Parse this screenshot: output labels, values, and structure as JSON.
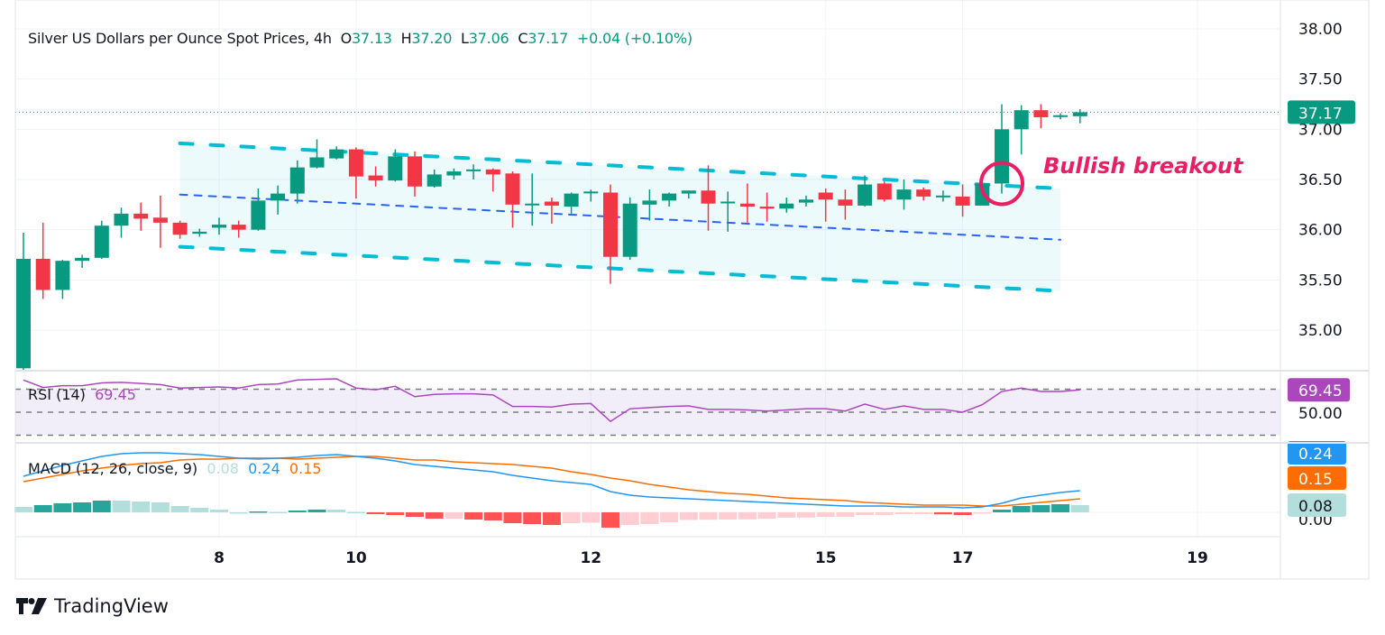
{
  "header": {
    "title": "Silver US Dollars per Ounce Spot Prices, 4h",
    "o_label": "O",
    "o_value": "37.13",
    "h_label": "H",
    "h_value": "37.20",
    "l_label": "L",
    "l_value": "37.06",
    "c_label": "C",
    "c_value": "37.17",
    "change": "+0.04 (+0.10%)"
  },
  "annotation": {
    "text": "Bullish breakout",
    "color": "#e91e63",
    "circle_bar": 50,
    "circle_price": 36.46
  },
  "brand": {
    "name": "TradingView"
  },
  "colors": {
    "up": "#089981",
    "down": "#f23645",
    "channel": "#00bcd4",
    "midline": "#2962ff",
    "rsi": "#ab47bc",
    "macd": "#2196f3",
    "signal": "#ff6d00",
    "hist_up_strong": "#26a69a",
    "hist_up_weak": "#b2dfdb",
    "hist_down_strong": "#ff5252",
    "hist_down_weak": "#ffcdd2"
  },
  "chart_data": [
    {
      "type": "candlestick",
      "title": "Silver US Dollars per Ounce Spot Prices, 4h",
      "ylim": [
        34.6,
        38.1
      ],
      "y_ticks": [
        "38.00",
        "37.50",
        "37.00",
        "36.50",
        "36.00",
        "35.50",
        "35.00"
      ],
      "x_ticks": [
        {
          "label": "8",
          "bar": 10
        },
        {
          "label": "10",
          "bar": 17
        },
        {
          "label": "12",
          "bar": 29
        },
        {
          "label": "15",
          "bar": 41
        },
        {
          "label": "17",
          "bar": 48
        },
        {
          "label": "19",
          "bar": 60
        }
      ],
      "last_price": "37.17",
      "grid": true,
      "ohlc": [
        [
          34.62,
          35.97,
          34.6,
          35.71
        ],
        [
          35.71,
          36.07,
          35.31,
          35.4
        ],
        [
          35.4,
          35.7,
          35.31,
          35.69
        ],
        [
          35.69,
          35.75,
          35.62,
          35.72
        ],
        [
          35.72,
          36.09,
          35.71,
          36.04
        ],
        [
          36.04,
          36.22,
          35.92,
          36.16
        ],
        [
          36.16,
          36.27,
          35.99,
          36.11
        ],
        [
          36.12,
          36.34,
          35.82,
          36.07
        ],
        [
          36.07,
          36.09,
          35.91,
          35.95
        ],
        [
          35.96,
          36.01,
          35.93,
          35.98
        ],
        [
          36.02,
          36.12,
          35.95,
          36.05
        ],
        [
          36.05,
          36.09,
          35.92,
          36.0
        ],
        [
          36.0,
          36.41,
          35.99,
          36.29
        ],
        [
          36.29,
          36.44,
          36.15,
          36.36
        ],
        [
          36.36,
          36.69,
          36.26,
          36.62
        ],
        [
          36.62,
          36.9,
          36.61,
          36.72
        ],
        [
          36.71,
          36.83,
          36.7,
          36.8
        ],
        [
          36.8,
          36.82,
          36.31,
          36.53
        ],
        [
          36.54,
          36.63,
          36.43,
          36.49
        ],
        [
          36.49,
          36.8,
          36.48,
          36.73
        ],
        [
          36.73,
          36.78,
          36.33,
          36.43
        ],
        [
          36.43,
          36.6,
          36.42,
          36.55
        ],
        [
          36.54,
          36.61,
          36.5,
          36.58
        ],
        [
          36.59,
          36.65,
          36.5,
          36.6
        ],
        [
          36.6,
          36.61,
          36.38,
          36.55
        ],
        [
          36.56,
          36.58,
          36.02,
          36.25
        ],
        [
          36.25,
          36.56,
          36.04,
          36.26
        ],
        [
          36.28,
          36.32,
          36.06,
          36.24
        ],
        [
          36.23,
          36.37,
          36.16,
          36.36
        ],
        [
          36.37,
          36.4,
          36.28,
          36.38
        ],
        [
          36.37,
          36.45,
          35.46,
          35.73
        ],
        [
          35.73,
          36.32,
          35.7,
          36.26
        ],
        [
          36.25,
          36.4,
          36.09,
          36.29
        ],
        [
          36.29,
          36.37,
          36.23,
          36.36
        ],
        [
          36.36,
          36.39,
          36.31,
          36.39
        ],
        [
          36.39,
          36.64,
          35.99,
          36.26
        ],
        [
          36.27,
          36.38,
          35.98,
          36.28
        ],
        [
          36.26,
          36.46,
          36.07,
          36.23
        ],
        [
          36.23,
          36.37,
          36.08,
          36.21
        ],
        [
          36.21,
          36.32,
          36.17,
          36.26
        ],
        [
          36.27,
          36.34,
          36.23,
          36.3
        ],
        [
          36.37,
          36.41,
          36.08,
          36.3
        ],
        [
          36.3,
          36.4,
          36.1,
          36.24
        ],
        [
          36.24,
          36.54,
          36.23,
          36.45
        ],
        [
          36.46,
          36.48,
          36.28,
          36.3
        ],
        [
          36.3,
          36.5,
          36.2,
          36.4
        ],
        [
          36.4,
          36.42,
          36.29,
          36.33
        ],
        [
          36.33,
          36.39,
          36.28,
          36.34
        ],
        [
          36.33,
          36.45,
          36.13,
          36.24
        ],
        [
          36.24,
          36.5,
          36.24,
          36.46
        ],
        [
          36.46,
          37.25,
          36.36,
          37.0
        ],
        [
          37.0,
          37.24,
          36.75,
          37.19
        ],
        [
          37.19,
          37.25,
          37.01,
          37.12
        ],
        [
          37.13,
          37.16,
          37.1,
          37.14
        ],
        [
          37.13,
          37.2,
          37.06,
          37.17
        ]
      ],
      "channel": {
        "upper": {
          "from": [
            8,
            36.86
          ],
          "to": [
            53,
            36.41
          ]
        },
        "middle": {
          "from": [
            8,
            36.35
          ],
          "to": [
            53,
            35.9
          ]
        },
        "lower": {
          "from": [
            8,
            35.83
          ],
          "to": [
            53,
            35.39
          ]
        }
      }
    },
    {
      "type": "line",
      "name": "RSI (14)",
      "label": "RSI (14)",
      "last_value": "69.45",
      "levels": [
        70,
        50,
        30
      ],
      "level_label": "50.00",
      "ylim": [
        25,
        88
      ],
      "values": [
        78,
        71.5,
        73,
        73,
        75.5,
        76,
        75,
        74,
        71,
        71.5,
        72,
        71,
        74,
        74.5,
        78,
        78.5,
        79,
        71,
        69.5,
        72.5,
        63.5,
        65.5,
        66,
        66,
        65,
        55,
        55,
        54.5,
        57,
        57.5,
        42,
        53,
        54,
        55,
        55.5,
        52.5,
        52.5,
        52,
        51,
        52,
        53,
        53,
        51,
        57,
        52.5,
        55.5,
        52.5,
        52.5,
        50,
        56.5,
        68,
        71,
        68,
        68,
        69.45
      ]
    },
    {
      "type": "line+bar",
      "label": "MACD (12, 26, close, 9)",
      "hist_last": "0.08",
      "macd_last": "0.24",
      "signal_last": "0.15",
      "zero_label": "0.00",
      "macd": [
        0.4,
        0.46,
        0.52,
        0.57,
        0.62,
        0.65,
        0.66,
        0.66,
        0.65,
        0.64,
        0.62,
        0.6,
        0.6,
        0.6,
        0.61,
        0.63,
        0.64,
        0.62,
        0.6,
        0.57,
        0.53,
        0.51,
        0.49,
        0.47,
        0.45,
        0.41,
        0.38,
        0.35,
        0.33,
        0.31,
        0.23,
        0.19,
        0.17,
        0.16,
        0.15,
        0.14,
        0.13,
        0.12,
        0.11,
        0.1,
        0.09,
        0.08,
        0.07,
        0.07,
        0.07,
        0.06,
        0.06,
        0.06,
        0.05,
        0.06,
        0.1,
        0.16,
        0.19,
        0.22,
        0.24
      ],
      "signal": [
        0.34,
        0.38,
        0.42,
        0.46,
        0.49,
        0.52,
        0.54,
        0.55,
        0.58,
        0.59,
        0.59,
        0.6,
        0.59,
        0.6,
        0.59,
        0.6,
        0.61,
        0.62,
        0.62,
        0.6,
        0.58,
        0.58,
        0.56,
        0.55,
        0.54,
        0.53,
        0.51,
        0.49,
        0.45,
        0.42,
        0.38,
        0.35,
        0.31,
        0.28,
        0.25,
        0.23,
        0.21,
        0.2,
        0.18,
        0.16,
        0.15,
        0.14,
        0.13,
        0.11,
        0.1,
        0.09,
        0.08,
        0.08,
        0.08,
        0.07,
        0.07,
        0.09,
        0.11,
        0.13,
        0.15
      ],
      "histogram": [
        0.06,
        0.08,
        0.1,
        0.11,
        0.13,
        0.13,
        0.12,
        0.11,
        0.07,
        0.05,
        0.03,
        0.0,
        0.01,
        0.005,
        0.02,
        0.03,
        0.03,
        0.005,
        -0.02,
        -0.03,
        -0.05,
        -0.07,
        -0.07,
        -0.08,
        -0.09,
        -0.12,
        -0.13,
        -0.14,
        -0.12,
        -0.115,
        -0.17,
        -0.14,
        -0.13,
        -0.11,
        -0.085,
        -0.082,
        -0.08,
        -0.078,
        -0.07,
        -0.06,
        -0.058,
        -0.05,
        -0.048,
        -0.03,
        -0.028,
        -0.02,
        -0.02,
        -0.022,
        -0.03,
        -0.015,
        0.03,
        0.07,
        0.08,
        0.09,
        0.08
      ]
    }
  ]
}
